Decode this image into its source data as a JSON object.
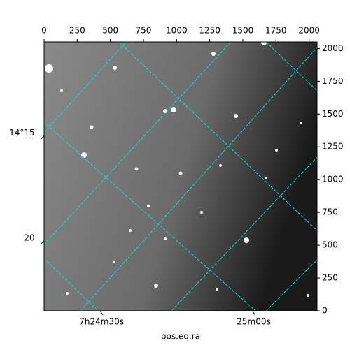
{
  "chart_data": {
    "type": "image",
    "xlabel": "pos.eq.ra",
    "xlim": [
      0,
      2060
    ],
    "ylim": [
      0,
      2050
    ],
    "xticks": [
      0,
      250,
      500,
      750,
      1000,
      1250,
      1500,
      1750,
      2000
    ],
    "yticks": [
      0,
      250,
      500,
      750,
      1000,
      1250,
      1500,
      1750,
      2000
    ],
    "ra_ticks": [
      {
        "value": 434,
        "label": "7h24m30s"
      },
      {
        "value": 1582,
        "label": "25m00s"
      }
    ],
    "dec_ticks": [
      {
        "value": 1333,
        "label": "14°15'"
      },
      {
        "value": 533,
        "label": "20'"
      }
    ],
    "grid_color": "#00e5e5"
  }
}
